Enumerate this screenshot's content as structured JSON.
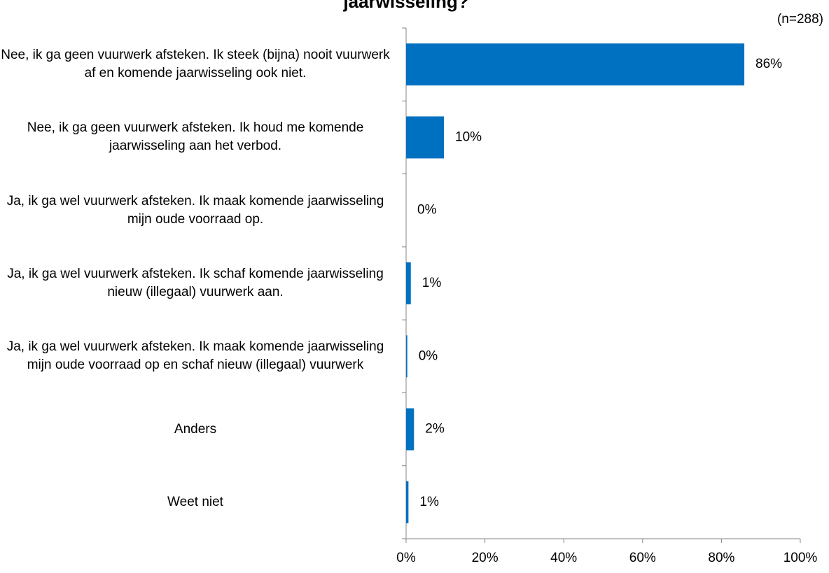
{
  "chart_data": {
    "type": "hbar",
    "title": "jaarwisseling?",
    "annotation": "(n=288)",
    "categories": [
      "Nee, ik ga geen vuurwerk afsteken. Ik steek (bijna) nooit vuurwerk af en komende jaarwisseling ook niet.",
      "Nee, ik ga geen vuurwerk afsteken. Ik houd me komende jaarwisseling aan het verbod.",
      "Ja, ik ga wel vuurwerk afsteken. Ik maak komende jaarwisseling mijn oude voorraad op.",
      "Ja, ik ga wel vuurwerk afsteken. Ik schaf komende jaarwisseling nieuw (illegaal) vuurwerk aan.",
      "Ja, ik ga wel vuurwerk afsteken. Ik maak komende jaarwisseling mijn oude voorraad op en schaf nieuw (illegaal) vuurwerk",
      "Anders",
      "Weet niet"
    ],
    "values": [
      85.8,
      9.6,
      0,
      1.2,
      0.3,
      2.0,
      0.6
    ],
    "value_labels": [
      "86%",
      "10%",
      "0%",
      "1%",
      "0%",
      "2%",
      "1%"
    ],
    "color": "#0070c0",
    "xlim": [
      0,
      100
    ],
    "xticks": [
      {
        "value": 0,
        "label": "0%"
      },
      {
        "value": 20,
        "label": "20%"
      },
      {
        "value": 40,
        "label": "40%"
      },
      {
        "value": 60,
        "label": "60%"
      },
      {
        "value": 80,
        "label": "80%"
      },
      {
        "value": 100,
        "label": "100%"
      }
    ]
  }
}
